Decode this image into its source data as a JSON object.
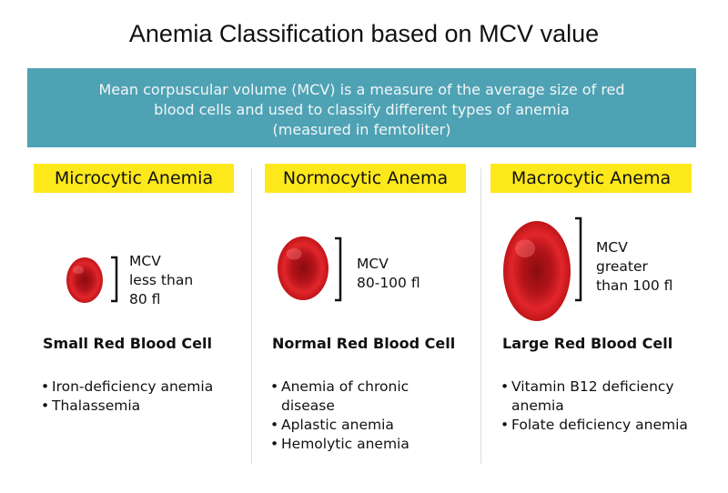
{
  "title": "Anemia Classification based on MCV value",
  "banner": {
    "lines": [
      "Mean corpuscular volume (MCV) is a measure of the average size of red",
      "blood cells and used to classify different types of anemia",
      "(measured in femtoliter)"
    ]
  },
  "columns": [
    {
      "heading": "Microcytic Anemia",
      "mcv": [
        "MCV",
        "less than",
        "80 fl"
      ],
      "cell": "Small Red Blood Cell",
      "bullets": [
        "Iron-deficiency anemia",
        "Thalassemia"
      ]
    },
    {
      "heading": "Normocytic Anema",
      "mcv": [
        "MCV",
        "80-100 fl"
      ],
      "cell": "Normal Red Blood Cell",
      "bullets": [
        "Anemia of chronic disease",
        "Aplastic anemia",
        "Hemolytic anemia"
      ]
    },
    {
      "heading": "Macrocytic Anema",
      "mcv": [
        "MCV",
        "greater",
        "than 100 fl"
      ],
      "cell": "Large Red Blood Cell",
      "bullets": [
        "Vitamin B12 deficiency anemia",
        "Folate deficiency anemia"
      ]
    }
  ]
}
